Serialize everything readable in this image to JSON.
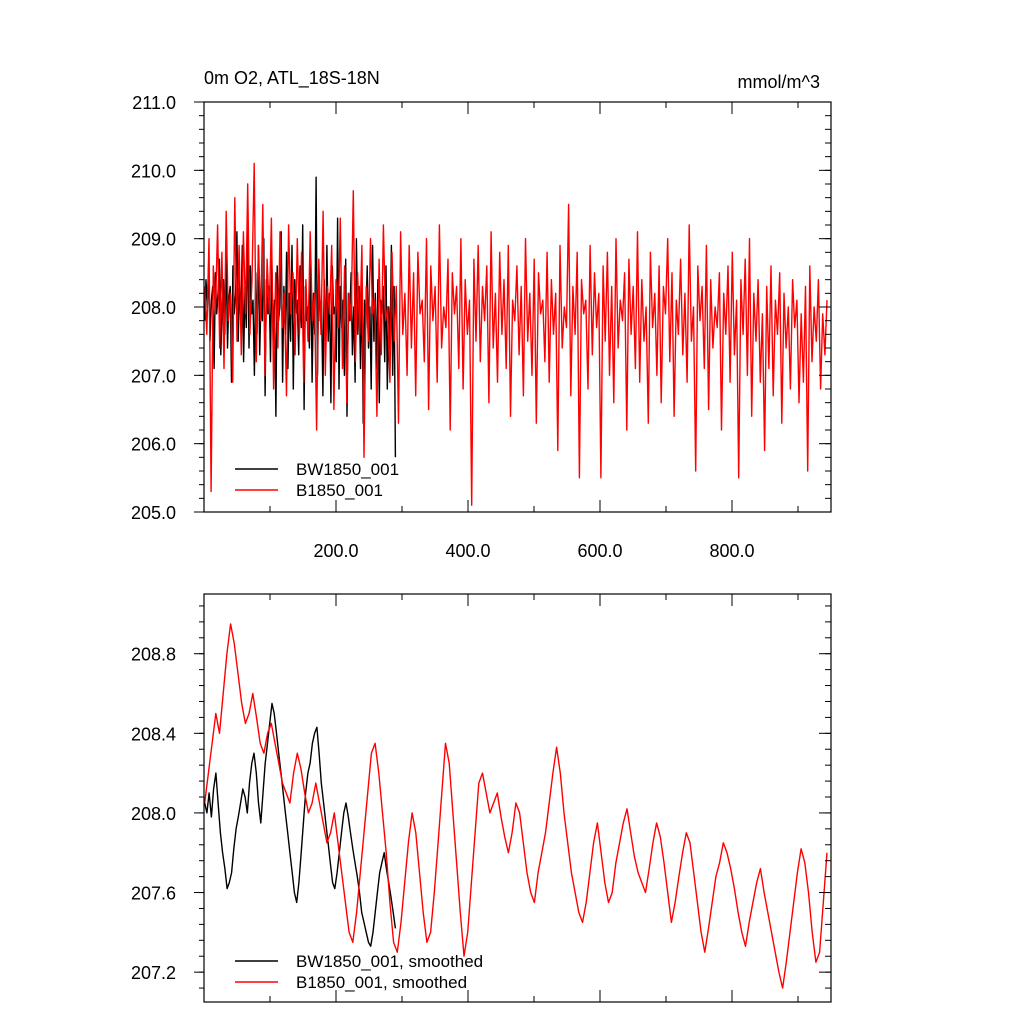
{
  "chart_data": [
    {
      "type": "line",
      "title": "0m O2, ATL_18S-18N",
      "units": "mmol/m^3",
      "xlim": [
        0,
        950
      ],
      "ylim": [
        205.0,
        211.0
      ],
      "x_ticks": [
        200,
        400,
        600,
        800
      ],
      "x_tick_labels": [
        "200.0",
        "400.0",
        "600.0",
        "800.0"
      ],
      "y_ticks": [
        205,
        206,
        207,
        208,
        209,
        210,
        211
      ],
      "y_tick_labels": [
        "205.0",
        "206.0",
        "207.0",
        "208.0",
        "209.0",
        "210.0",
        "211.0"
      ],
      "legend_position": "bottom-left",
      "series": [
        {
          "name": "BW1850_001",
          "color": "#000000",
          "x_start": 1,
          "values": [
            207.8,
            208.4,
            208.0,
            208.6,
            207.5,
            208.1,
            208.3,
            207.1,
            208.5,
            207.9,
            208.2,
            208.7,
            207.3,
            208.0,
            208.4,
            207.6,
            208.8,
            207.4,
            208.1,
            208.3,
            206.9,
            208.6,
            207.9,
            208.2,
            209.1,
            207.5,
            208.4,
            207.8,
            208.9,
            207.2,
            208.3,
            207.7,
            209.3,
            207.4,
            208.6,
            207.9,
            208.1,
            207.0,
            208.5,
            207.6,
            208.9,
            207.3,
            208.2,
            207.8,
            209.0,
            206.7,
            208.4,
            207.9,
            208.3,
            207.2,
            208.7,
            207.5,
            208.1,
            206.4,
            208.6,
            207.8,
            208.0,
            209.1,
            206.9,
            208.3,
            207.6,
            208.8,
            207.1,
            208.2,
            207.5,
            208.9,
            206.8,
            208.4,
            207.9,
            208.1,
            207.3,
            208.6,
            207.7,
            209.2,
            206.5,
            208.3,
            207.8,
            208.0,
            207.4,
            208.7,
            206.9,
            208.2,
            207.6,
            209.9,
            207.0,
            208.5,
            207.8,
            208.1,
            206.7,
            208.4,
            207.3,
            208.9,
            207.5,
            208.2,
            206.6,
            208.6,
            207.9,
            208.0,
            207.2,
            209.3,
            206.8,
            208.3,
            207.7,
            208.1,
            207.0,
            208.7,
            206.4,
            208.2,
            207.8,
            208.5,
            207.3,
            208.0,
            206.9,
            209.0,
            207.6,
            208.3,
            207.1,
            208.4,
            206.3,
            208.1,
            207.7,
            208.6,
            207.4,
            208.0,
            206.8,
            208.9,
            207.5,
            208.2,
            207.1,
            208.4,
            206.6,
            208.1,
            207.9,
            208.3,
            207.2,
            208.6,
            206.8,
            208.0,
            207.4,
            208.9,
            207.0,
            208.3,
            205.8
          ]
        },
        {
          "name": "B1850_001",
          "color": "#ff0000",
          "x_start": 1,
          "values": [
            208.3,
            207.6,
            209.0,
            205.3,
            208.6,
            207.9,
            209.2,
            207.4,
            208.8,
            207.1,
            209.4,
            207.8,
            208.2,
            206.9,
            209.6,
            207.5,
            208.9,
            207.3,
            209.1,
            207.9,
            209.8,
            207.6,
            208.4,
            210.1,
            207.2,
            208.9,
            207.8,
            209.5,
            207.0,
            208.7,
            207.9,
            209.3,
            206.8,
            208.5,
            207.4,
            209.1,
            207.7,
            208.2,
            206.7,
            209.2,
            207.9,
            208.5,
            207.3,
            209.0,
            207.6,
            208.8,
            206.9,
            208.4,
            207.5,
            209.1,
            207.8,
            208.2,
            206.2,
            208.7,
            207.6,
            209.4,
            207.0,
            208.3,
            207.9,
            208.9,
            206.5,
            208.4,
            207.7,
            209.3,
            207.1,
            208.6,
            206.6,
            208.2,
            207.8,
            209.7,
            207.2,
            208.5,
            207.6,
            208.9,
            205.8,
            208.3,
            207.5,
            209.0,
            207.9,
            208.1,
            206.4,
            208.7,
            207.3,
            209.2,
            207.8,
            208.0,
            206.9,
            208.8,
            207.5,
            208.3,
            206.3,
            209.1,
            207.6,
            208.2,
            207.0,
            208.9,
            207.4,
            208.5,
            206.7,
            208.8,
            207.9,
            208.1,
            207.2,
            209.0,
            206.5,
            208.6,
            207.8,
            208.3,
            206.9,
            209.2,
            207.4,
            208.0,
            207.7,
            208.7,
            206.2,
            208.5,
            207.9,
            208.3,
            207.1,
            209.0,
            206.8,
            208.4,
            207.6,
            208.1,
            205.1,
            208.7,
            207.5,
            208.9,
            207.2,
            208.3,
            207.8,
            208.6,
            206.6,
            209.1,
            207.4,
            208.2,
            206.9,
            208.8,
            207.6,
            208.4,
            207.1,
            208.9,
            206.4,
            208.1,
            207.8,
            208.6,
            207.3,
            208.3,
            206.7,
            209.0,
            207.5,
            208.2,
            207.0,
            208.7,
            206.3,
            208.5,
            207.9,
            208.1,
            207.2,
            208.8,
            206.9,
            208.4,
            207.6,
            208.2,
            205.9,
            208.9,
            207.4,
            208.0,
            207.7,
            209.5,
            206.7,
            208.3,
            207.6,
            208.8,
            205.5,
            208.4,
            207.9,
            208.1,
            206.8,
            208.9,
            207.3,
            208.5,
            207.7,
            208.2,
            205.5,
            208.6,
            207.5,
            208.8,
            207.0,
            208.3,
            206.6,
            209.0,
            207.4,
            208.1,
            207.8,
            208.5,
            206.2,
            208.7,
            207.6,
            208.3,
            207.1,
            209.1,
            206.9,
            208.4,
            207.5,
            208.0,
            206.3,
            208.8,
            207.7,
            208.2,
            207.0,
            208.6,
            206.6,
            208.3,
            207.9,
            209.0,
            207.2,
            208.5,
            206.4,
            208.1,
            207.6,
            208.7,
            207.3,
            208.2,
            206.9,
            209.2,
            207.5,
            208.0,
            205.6,
            208.6,
            207.8,
            208.3,
            207.1,
            208.9,
            206.5,
            208.4,
            207.4,
            208.0,
            207.7,
            208.5,
            206.2,
            208.2,
            207.6,
            208.6,
            206.9,
            208.8,
            207.3,
            208.1,
            205.5,
            208.4,
            207.6,
            208.7,
            207.0,
            209.0,
            206.4,
            208.2,
            207.5,
            208.4,
            206.9,
            207.9,
            205.9,
            208.3,
            207.1,
            208.6,
            206.7,
            208.1,
            207.6,
            208.5,
            206.3,
            208.2,
            207.4,
            208.0,
            206.8,
            208.4,
            207.7,
            208.1,
            206.6,
            207.9,
            206.9,
            208.3,
            205.6,
            208.6,
            207.2,
            208.0,
            207.5,
            208.4,
            206.8,
            207.9,
            207.3,
            208.1
          ]
        }
      ]
    },
    {
      "type": "line",
      "xlim": [
        0,
        950
      ],
      "ylim": [
        207.05,
        209.1
      ],
      "x_ticks": [
        200,
        400,
        600,
        800
      ],
      "y_ticks": [
        207.2,
        207.6,
        208.0,
        208.4,
        208.8
      ],
      "y_tick_labels": [
        "207.2",
        "207.6",
        "208.0",
        "208.4",
        "208.8"
      ],
      "legend_position": "bottom-left",
      "series": [
        {
          "name": "BW1850_001, smoothed",
          "color": "#000000",
          "x_start": 1,
          "values": [
            208.05,
            208.0,
            208.1,
            207.98,
            208.12,
            208.2,
            208.05,
            207.9,
            207.8,
            207.72,
            207.62,
            207.65,
            207.7,
            207.82,
            207.92,
            207.98,
            208.05,
            208.12,
            208.08,
            208.0,
            208.15,
            208.25,
            208.3,
            208.2,
            208.05,
            207.95,
            208.1,
            208.25,
            208.35,
            208.45,
            208.55,
            208.5,
            208.4,
            208.3,
            208.2,
            208.1,
            208.0,
            207.9,
            207.8,
            207.7,
            207.6,
            207.55,
            207.65,
            207.8,
            207.95,
            208.1,
            208.2,
            208.25,
            208.35,
            208.4,
            208.43,
            208.3,
            208.15,
            208.05,
            207.95,
            207.85,
            207.75,
            207.65,
            207.62,
            207.7,
            207.8,
            207.9,
            208.0,
            208.05,
            207.98,
            207.9,
            207.82,
            207.75,
            207.68,
            207.6,
            207.5,
            207.45,
            207.4,
            207.35,
            207.33,
            207.4,
            207.5,
            207.6,
            207.7,
            207.75,
            207.8,
            207.72,
            207.65,
            207.58,
            207.5,
            207.42
          ]
        },
        {
          "name": "B1850_001, smoothed",
          "color": "#ff0000",
          "x_start": 1,
          "values": [
            208.05,
            208.2,
            208.35,
            208.5,
            208.4,
            208.6,
            208.8,
            208.95,
            208.85,
            208.7,
            208.55,
            208.45,
            208.5,
            208.6,
            208.48,
            208.35,
            208.3,
            208.4,
            208.45,
            208.35,
            208.25,
            208.15,
            208.1,
            208.05,
            208.2,
            208.3,
            208.22,
            208.1,
            208.0,
            208.05,
            208.15,
            208.05,
            207.95,
            207.85,
            207.9,
            208.0,
            207.85,
            207.7,
            207.55,
            207.4,
            207.35,
            207.5,
            207.7,
            207.9,
            208.1,
            208.3,
            208.35,
            208.2,
            208.0,
            207.8,
            207.55,
            207.35,
            207.3,
            207.45,
            207.65,
            207.85,
            208.0,
            207.9,
            207.7,
            207.5,
            207.35,
            207.4,
            207.6,
            207.85,
            208.1,
            208.35,
            208.25,
            208.0,
            207.75,
            207.5,
            207.28,
            207.4,
            207.65,
            207.9,
            208.15,
            208.2,
            208.1,
            208.0,
            208.05,
            208.1,
            207.98,
            207.88,
            207.8,
            207.9,
            208.05,
            208.0,
            207.85,
            207.7,
            207.6,
            207.55,
            207.7,
            207.8,
            207.9,
            208.05,
            208.2,
            208.33,
            208.2,
            208.0,
            207.85,
            207.7,
            207.6,
            207.5,
            207.45,
            207.55,
            207.7,
            207.85,
            207.95,
            207.8,
            207.65,
            207.55,
            207.6,
            207.75,
            207.85,
            207.95,
            208.02,
            207.9,
            207.78,
            207.7,
            207.65,
            207.6,
            207.72,
            207.85,
            207.95,
            207.88,
            207.75,
            207.6,
            207.45,
            207.55,
            207.68,
            207.8,
            207.9,
            207.85,
            207.7,
            207.55,
            207.4,
            207.3,
            207.42,
            207.55,
            207.68,
            207.75,
            207.85,
            207.8,
            207.72,
            207.62,
            207.5,
            207.4,
            207.33,
            207.45,
            207.55,
            207.65,
            207.72,
            207.6,
            207.5,
            207.4,
            207.3,
            207.2,
            207.12,
            207.25,
            207.4,
            207.55,
            207.7,
            207.82,
            207.75,
            207.6,
            207.4,
            207.25,
            207.3,
            207.55,
            207.8
          ]
        }
      ]
    }
  ]
}
